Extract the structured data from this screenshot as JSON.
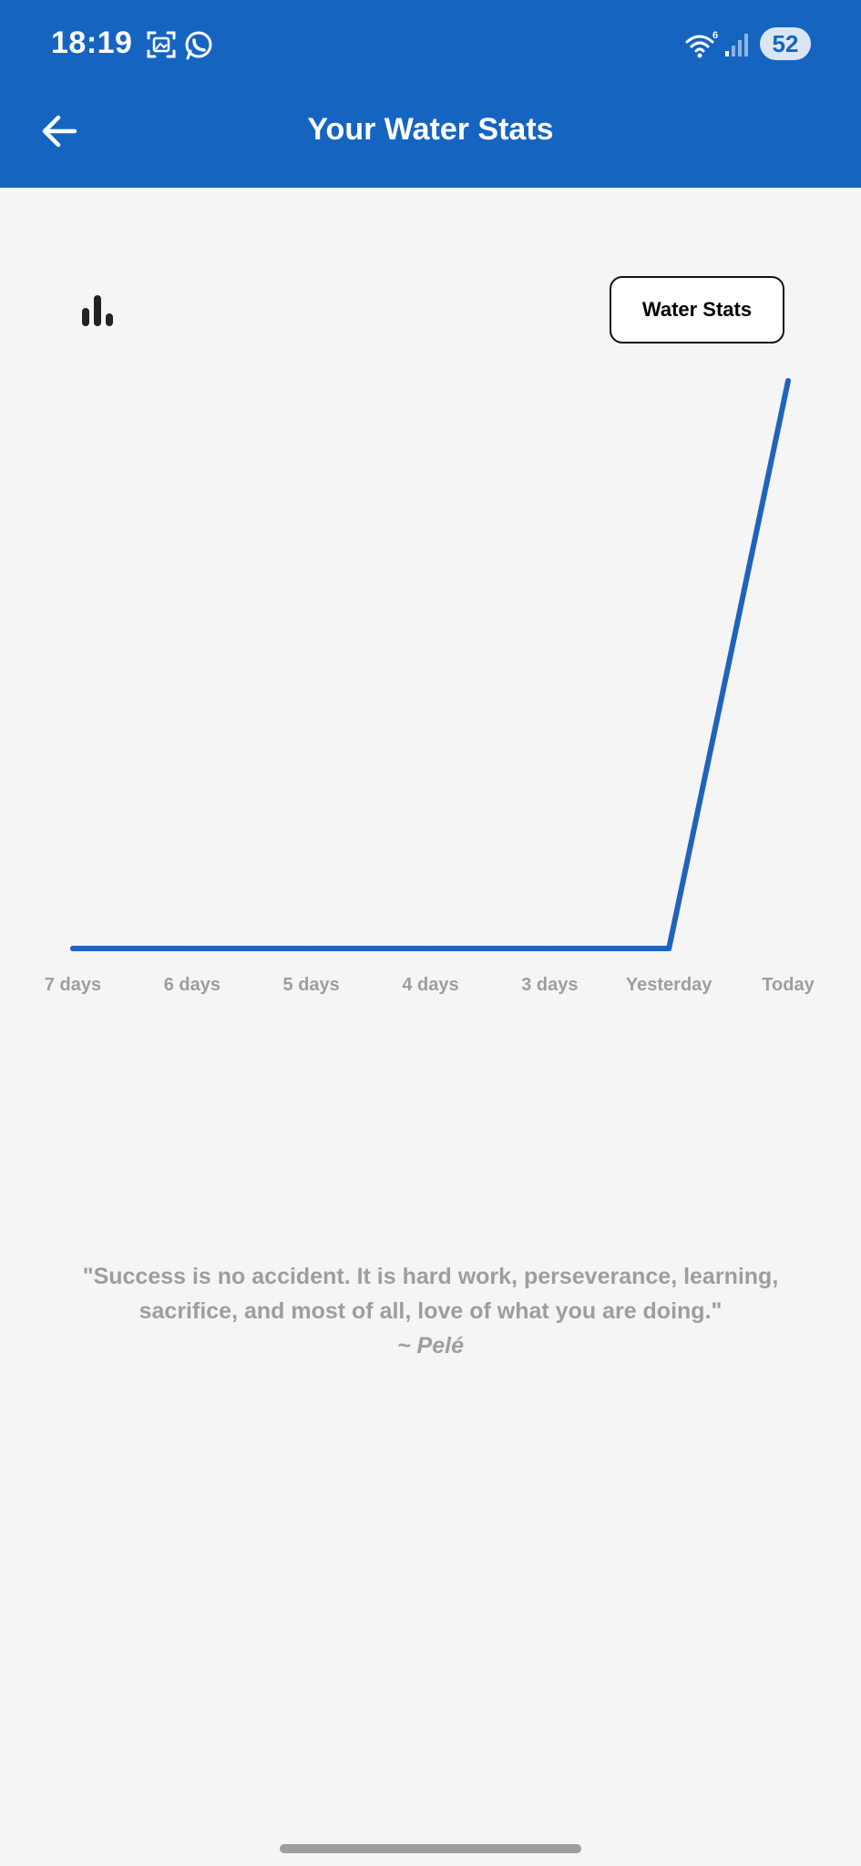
{
  "status_bar": {
    "time": "18:19",
    "battery": "52",
    "icons": [
      "gallery-icon",
      "whatsapp-icon",
      "wifi-icon",
      "signal-icon"
    ]
  },
  "header": {
    "back_icon": "arrow-left-icon",
    "title": "Your Water Stats"
  },
  "toolbar": {
    "chart_icon": "bar-chart-icon",
    "stats_button_label": "Water Stats"
  },
  "chart_data": {
    "type": "line",
    "categories": [
      "7 days",
      "6 days",
      "5 days",
      "4 days",
      "3 days",
      "Yesterday",
      "Today"
    ],
    "series": [
      {
        "values": [
          0,
          0,
          0,
          0,
          0,
          0,
          1
        ]
      }
    ],
    "ylim": [
      0,
      1
    ],
    "grid": false,
    "line_color": "#1f63bd"
  },
  "quote": {
    "text": "\"Success is no accident. It is hard work, perseverance, learning, sacrifice, and most of all, love of what you are doing.\"",
    "author": "~ Pelé"
  },
  "colors": {
    "appbar": "#1565c0",
    "background": "#f5f5f5",
    "muted_text": "#9e9e9e"
  }
}
